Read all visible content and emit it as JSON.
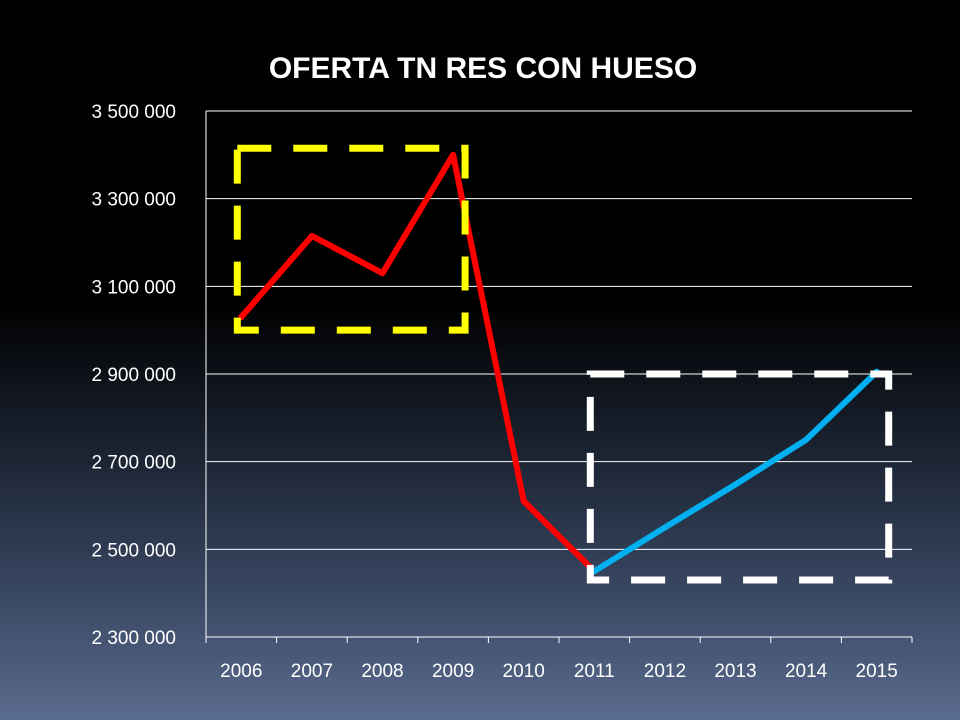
{
  "chart_data": {
    "type": "line",
    "title": "OFERTA TN RES CON HUESO",
    "xlabel": "",
    "ylabel": "",
    "categories": [
      "2006",
      "2007",
      "2008",
      "2009",
      "2010",
      "2011",
      "2012",
      "2013",
      "2014",
      "2015"
    ],
    "y_tick_labels": [
      "2 300 000",
      "2 500 000",
      "2 700 000",
      "2 900 000",
      "3 100 000",
      "3 300 000",
      "3 500 000"
    ],
    "y_ticks": [
      2300000,
      2500000,
      2700000,
      2900000,
      3100000,
      3300000,
      3500000
    ],
    "ylim": [
      2300000,
      3500000
    ],
    "grid": true,
    "series": [
      {
        "color": "#ff0000",
        "x": [
          "2006",
          "2007",
          "2008",
          "2009",
          "2010",
          "2011"
        ],
        "values": [
          3030000,
          3215000,
          3130000,
          3400000,
          2610000,
          2450000
        ]
      },
      {
        "color": "#00b0f0",
        "x": [
          "2011",
          "2012",
          "2013",
          "2014",
          "2015"
        ],
        "values": [
          2450000,
          2550000,
          2648000,
          2750000,
          2905000
        ]
      }
    ],
    "annotations": [
      {
        "kind": "dashed-box",
        "color": "#ffff00",
        "x_from": "2006",
        "x_to": "2009",
        "y_from": 3000000,
        "y_to": 3415000
      },
      {
        "kind": "dashed-box",
        "color": "#ffffff",
        "x_from": "2011",
        "x_to": "2015",
        "y_from": 2430000,
        "y_to": 2900000
      }
    ]
  }
}
